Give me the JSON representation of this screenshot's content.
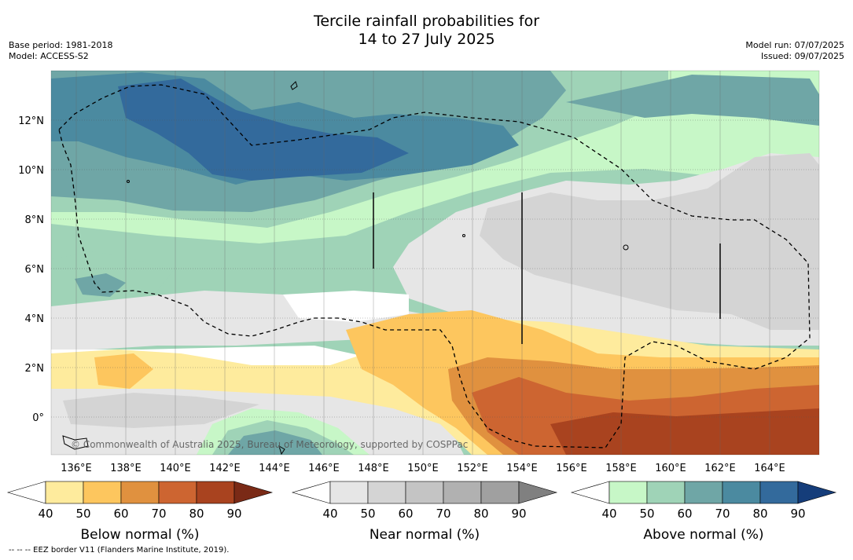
{
  "title": {
    "line1": "Tercile rainfall probabilities for",
    "line2": "14 to 27 July 2025"
  },
  "meta": {
    "base_period": "Base period: 1981-2018",
    "model": "Model: ACCESS-S2",
    "model_run": "Model run: 07/07/2025",
    "issued": "Issued: 09/07/2025"
  },
  "map": {
    "lat_ticks": [
      "12°N",
      "10°N",
      "8°N",
      "6°N",
      "4°N",
      "2°N",
      "0°"
    ],
    "lon_ticks": [
      "136°E",
      "138°E",
      "140°E",
      "142°E",
      "144°E",
      "146°E",
      "148°E",
      "150°E",
      "152°E",
      "154°E",
      "156°E",
      "158°E",
      "160°E",
      "162°E",
      "164°E"
    ],
    "copyright": "© Commonwealth of Australia 2025, Bureau of Meteorology, supported by COSPPac"
  },
  "colorbars": [
    {
      "label": "Below normal (%)",
      "ticks": [
        "40",
        "50",
        "60",
        "70",
        "80",
        "90"
      ],
      "colors": [
        "#ffffff",
        "#feeb9d",
        "#fdc65e",
        "#e0913f",
        "#cd6531",
        "#a9431f",
        "#7a2a16"
      ]
    },
    {
      "label": "Near normal (%)",
      "ticks": [
        "40",
        "50",
        "60",
        "70",
        "80",
        "90"
      ],
      "colors": [
        "#ffffff",
        "#e6e6e6",
        "#d4d4d4",
        "#c4c4c4",
        "#b1b1b1",
        "#a0a0a0",
        "#808080"
      ]
    },
    {
      "label": "Above normal (%)",
      "ticks": [
        "40",
        "50",
        "60",
        "70",
        "80",
        "90"
      ],
      "colors": [
        "#ffffff",
        "#c7f7c7",
        "#9fd3b7",
        "#6fa6a6",
        "#4b8aa0",
        "#336a9c",
        "#153d7a"
      ]
    }
  ],
  "footer": "--  --  -- EEZ border V11 (Flanders Marine Institute, 2019)."
}
